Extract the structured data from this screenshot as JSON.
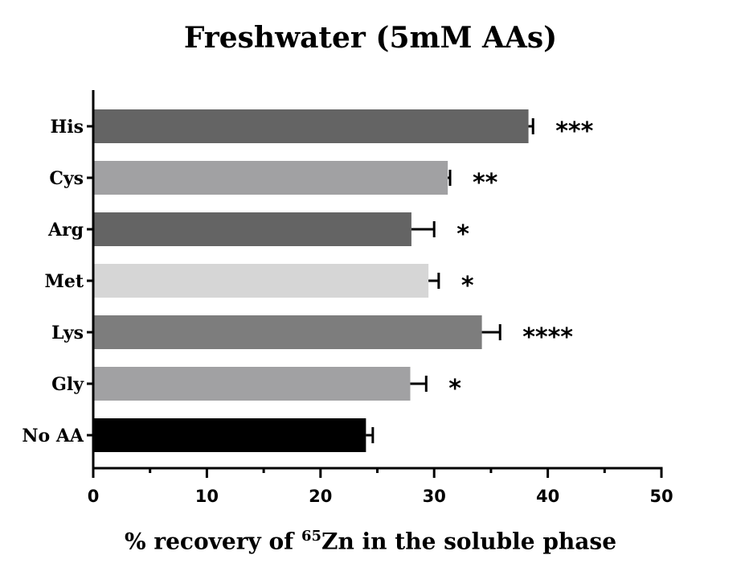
{
  "chart_data": {
    "type": "bar",
    "orientation": "horizontal",
    "title": "Freshwater (5mM AAs)",
    "xlabel": {
      "prefix": "% recovery of ",
      "superscript": "65",
      "suffix": "Zn in the soluble phase"
    },
    "xlim": [
      0,
      50
    ],
    "xticks": [
      0,
      10,
      20,
      30,
      40,
      50
    ],
    "categories": [
      "His",
      "Cys",
      "Arg",
      "Met",
      "Lys",
      "Gly",
      "No AA"
    ],
    "values": [
      38.3,
      31.2,
      28.0,
      29.5,
      34.2,
      27.9,
      24.0
    ],
    "errors": [
      0.4,
      0.2,
      2.0,
      0.9,
      1.6,
      1.4,
      0.6
    ],
    "significance": [
      "***",
      "**",
      "*",
      "*",
      "****",
      "*",
      ""
    ],
    "colors": [
      "#646464",
      "#a1a1a3",
      "#646464",
      "#d6d6d6",
      "#7d7d7d",
      "#a1a1a3",
      "#000000"
    ],
    "grid": false,
    "legend": "none"
  }
}
